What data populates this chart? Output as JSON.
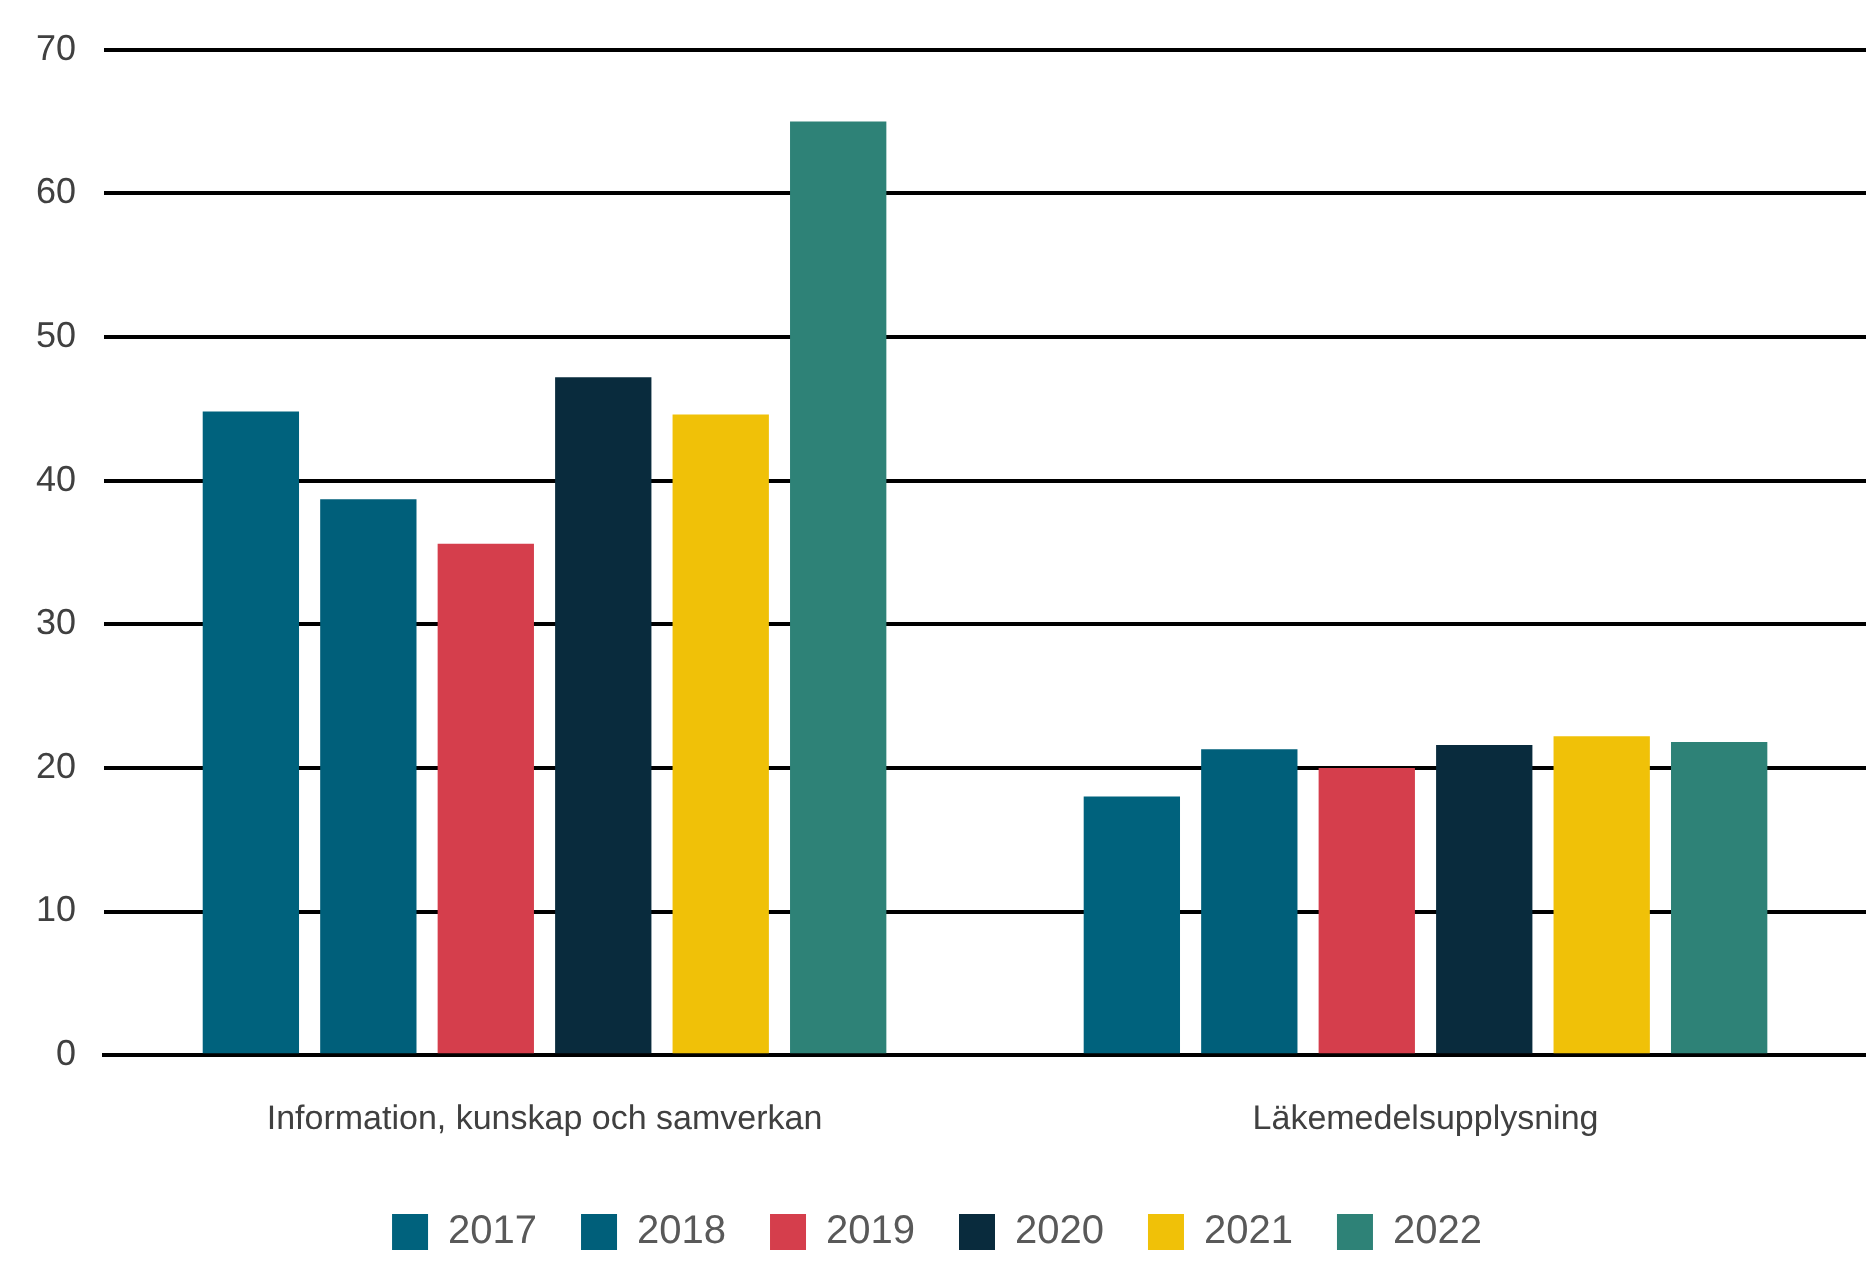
{
  "chart_data": {
    "type": "bar",
    "categories": [
      "Information, kunskap och samverkan",
      "Läkemedelsupplysning"
    ],
    "series": [
      {
        "name": "2017",
        "color": "#00627d",
        "values": [
          44.8,
          18.0
        ]
      },
      {
        "name": "2018",
        "color": "#005f7a",
        "values": [
          38.7,
          21.3
        ]
      },
      {
        "name": "2019",
        "color": "#d53e4c",
        "values": [
          35.6,
          20.0
        ]
      },
      {
        "name": "2020",
        "color": "#092b3d",
        "values": [
          47.2,
          21.6
        ]
      },
      {
        "name": "2021",
        "color": "#f0c108",
        "values": [
          44.6,
          22.2
        ]
      },
      {
        "name": "2022",
        "color": "#2e8277",
        "values": [
          65.0,
          21.8
        ]
      }
    ],
    "ylim": [
      0,
      70
    ],
    "yticks": [
      0,
      10,
      20,
      30,
      40,
      50,
      60,
      70
    ],
    "grid": "y",
    "legend": "bottom"
  }
}
